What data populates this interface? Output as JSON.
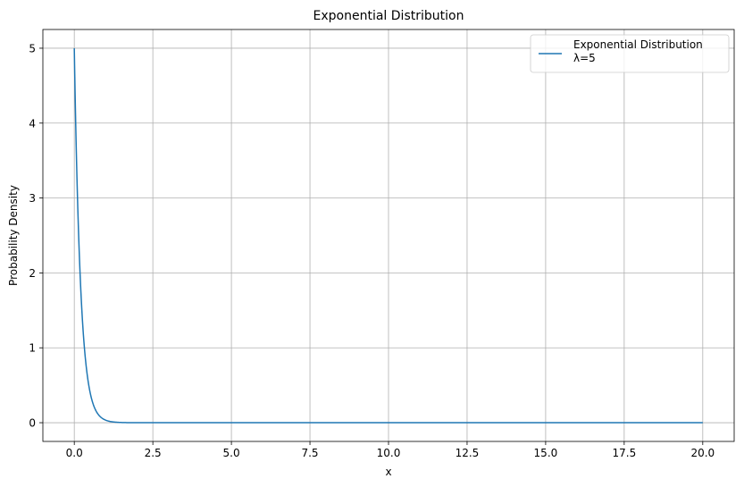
{
  "chart_data": {
    "type": "line",
    "title": "Exponential Distribution",
    "xlabel": "x",
    "ylabel": "Probability Density",
    "xlim": [
      -1,
      21
    ],
    "ylim": [
      -0.25,
      5.25
    ],
    "x_ticks": [
      "0.0",
      "2.5",
      "5.0",
      "7.5",
      "10.0",
      "12.5",
      "15.0",
      "17.5",
      "20.0"
    ],
    "y_ticks": [
      "0",
      "1",
      "2",
      "3",
      "4",
      "5"
    ],
    "grid": true,
    "legend_position": "top-right",
    "series": [
      {
        "name": "Exponential Distribution\nλ=5",
        "color": "#1f77b4",
        "function": "5*exp(-5*x)",
        "x_range": [
          0,
          20
        ],
        "values": [
          [
            0,
            5.0
          ],
          [
            0.05,
            3.89
          ],
          [
            0.1,
            3.03
          ],
          [
            0.2,
            1.84
          ],
          [
            0.3,
            1.12
          ],
          [
            0.4,
            0.68
          ],
          [
            0.5,
            0.41
          ],
          [
            0.75,
            0.12
          ],
          [
            1.0,
            0.034
          ],
          [
            1.5,
            0.003
          ],
          [
            2.0,
            0.0002
          ],
          [
            5.0,
            0.0
          ],
          [
            10.0,
            0.0
          ],
          [
            15.0,
            0.0
          ],
          [
            20.0,
            0.0
          ]
        ]
      }
    ]
  }
}
